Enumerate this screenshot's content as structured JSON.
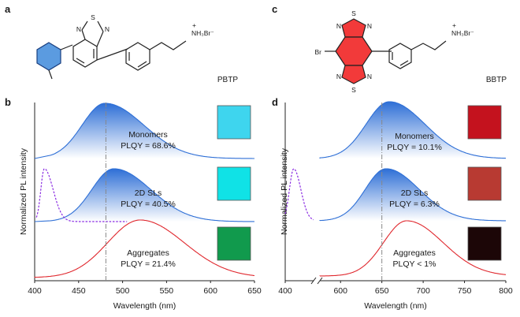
{
  "panels": {
    "a": {
      "label": "a",
      "compound": "PBTP",
      "atoms": {
        "s": "S",
        "n1": "N",
        "n2": "N",
        "amine": "NH₃Br⁻",
        "charge": "+"
      }
    },
    "c": {
      "label": "c",
      "compound": "BBTP",
      "atoms": {
        "s1": "S",
        "s2": "S",
        "n1": "N",
        "n2": "N",
        "n3": "N",
        "n4": "N",
        "br": "Br",
        "amine": "NH₃Br⁻",
        "charge": "+"
      }
    },
    "b": {
      "label": "b",
      "annotations": [
        {
          "line1": "Monomers",
          "line2": "PLQY = 68.6%"
        },
        {
          "line1": "2D SLs",
          "line2": "PLQY = 40.5%"
        },
        {
          "line1": "Aggregates",
          "line2": "PLQY = 21.4%"
        }
      ],
      "swatch_colors": [
        "#3ED5EE",
        "#10E2E6",
        "#119A4D"
      ]
    },
    "d": {
      "label": "d",
      "annotations": [
        {
          "line1": "Monomers",
          "line2": "PLQY = 10.1%"
        },
        {
          "line1": "2D SLs",
          "line2": "PLQY = 6.3%"
        },
        {
          "line1": "Aggregates",
          "line2": "PLQY < 1%"
        }
      ],
      "swatch_colors": [
        "#C4121E",
        "#B83A32",
        "#1C0607"
      ]
    }
  },
  "colors": {
    "blue": "#2E6FD6",
    "red": "#E0282E",
    "purple": "#8A2BE2",
    "dashline": "#888888",
    "molecule_blue": "#5B9BE0",
    "molecule_red": "#F23A3A"
  },
  "chart_data": [
    {
      "type": "line",
      "panel": "b",
      "xlabel": "Wavelength (nm)",
      "ylabel": "Normalized PL intensity",
      "xlim": [
        400,
        650
      ],
      "xticks": [
        400,
        450,
        500,
        550,
        600,
        650
      ],
      "reference_line_x": 481,
      "series": [
        {
          "name": "Monomers",
          "color": "blue",
          "filled": true,
          "offset": 2,
          "baseline_start": 418,
          "peak": 480,
          "sigma_left": 26,
          "sigma_right": 44,
          "end": 650
        },
        {
          "name": "2D SLs",
          "color": "blue",
          "filled": true,
          "offset": 1,
          "baseline_start": 418,
          "peak": 490,
          "sigma_left": 25,
          "sigma_right": 42,
          "end": 650
        },
        {
          "name": "2D SLs excitation",
          "color": "purple",
          "dashed": true,
          "offset": 1,
          "peak": 411,
          "sigma_left": 4,
          "sigma_right": 10,
          "start": 402,
          "end": 505
        },
        {
          "name": "Aggregates",
          "color": "red",
          "filled": false,
          "offset": 0,
          "baseline_start": 400,
          "peak": 520,
          "sigma_left": 37,
          "sigma_right": 50,
          "end": 650
        }
      ]
    },
    {
      "type": "line",
      "panel": "d",
      "xlabel": "Wavelength (nm)",
      "ylabel": "Normalized PL intensity",
      "xlim": [
        400,
        800
      ],
      "xticks": [
        400,
        600,
        650,
        700,
        750,
        800
      ],
      "axis_break": [
        420,
        575
      ],
      "reference_line_x": 650,
      "series": [
        {
          "name": "Monomers",
          "color": "blue",
          "filled": true,
          "offset": 2,
          "baseline_start": 575,
          "peak": 659,
          "sigma_left": 28,
          "sigma_right": 43,
          "end": 800
        },
        {
          "name": "2D SLs",
          "color": "blue",
          "filled": true,
          "offset": 1,
          "baseline_start": 575,
          "peak": 655,
          "sigma_left": 25,
          "sigma_right": 40,
          "end": 800
        },
        {
          "name": "2D SLs excitation",
          "color": "purple",
          "dashed": true,
          "offset": 1,
          "peak": 406,
          "sigma_left": 3,
          "sigma_right": 5,
          "start": 400,
          "end": 420
        },
        {
          "name": "Aggregates",
          "color": "red",
          "filled": false,
          "offset": 0,
          "baseline_start": 575,
          "peak": 680,
          "sigma_left": 28,
          "sigma_right": 44,
          "end": 800
        }
      ]
    }
  ]
}
